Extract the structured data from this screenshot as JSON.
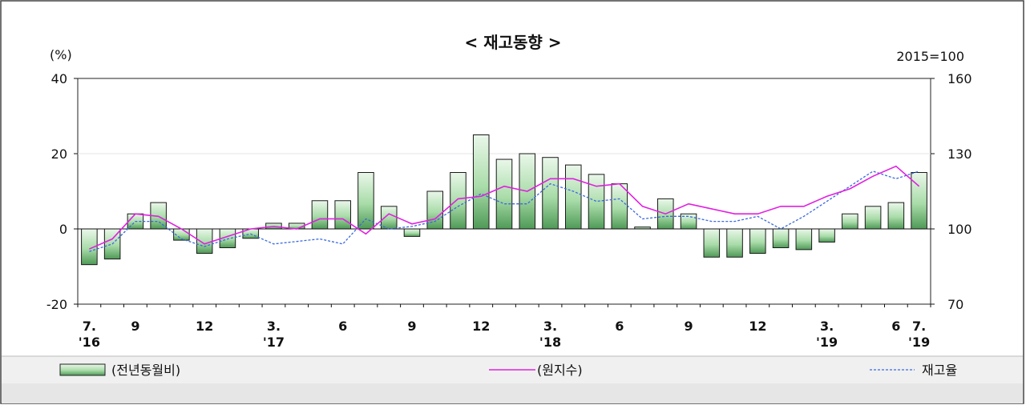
{
  "chart_data": {
    "type": "bar",
    "title": "< 재고동향 >",
    "left_unit": "(%)",
    "right_unit": "2015=100",
    "ylim_left": [
      -20,
      40
    ],
    "ylim_right": [
      70,
      160
    ],
    "left_ticks": [
      "40",
      "20",
      "0",
      "-20"
    ],
    "right_ticks": [
      "160",
      "130",
      "100",
      "70"
    ],
    "months": [
      "2016-07",
      "2016-08",
      "2016-09",
      "2016-10",
      "2016-11",
      "2016-12",
      "2017-01",
      "2017-02",
      "2017-03",
      "2017-04",
      "2017-05",
      "2017-06",
      "2017-07",
      "2017-08",
      "2017-09",
      "2017-10",
      "2017-11",
      "2017-12",
      "2018-01",
      "2018-02",
      "2018-03",
      "2018-04",
      "2018-05",
      "2018-06",
      "2018-07",
      "2018-08",
      "2018-09",
      "2018-10",
      "2018-11",
      "2018-12",
      "2019-01",
      "2019-02",
      "2019-03",
      "2019-04",
      "2019-05",
      "2019-06",
      "2019-07"
    ],
    "x_labels": [
      {
        "index": 0,
        "line1": "7.",
        "line2": "'16"
      },
      {
        "index": 2,
        "line1": "9",
        "line2": ""
      },
      {
        "index": 5,
        "line1": "12",
        "line2": ""
      },
      {
        "index": 8,
        "line1": "3.",
        "line2": "'17"
      },
      {
        "index": 11,
        "line1": "6",
        "line2": ""
      },
      {
        "index": 14,
        "line1": "9",
        "line2": ""
      },
      {
        "index": 17,
        "line1": "12",
        "line2": ""
      },
      {
        "index": 20,
        "line1": "3.",
        "line2": "'18"
      },
      {
        "index": 23,
        "line1": "6",
        "line2": ""
      },
      {
        "index": 26,
        "line1": "9",
        "line2": ""
      },
      {
        "index": 29,
        "line1": "12",
        "line2": ""
      },
      {
        "index": 32,
        "line1": "3.",
        "line2": "'19"
      },
      {
        "index": 35,
        "line1": "6",
        "line2": ""
      },
      {
        "index": 36,
        "line1": "7.",
        "line2": "'19"
      }
    ],
    "series": [
      {
        "name": "(전년동월비)",
        "kind": "bar",
        "axis": "left",
        "color": "#7fbf7f",
        "values": [
          -9.5,
          -8,
          4,
          7,
          -3,
          -6.5,
          -5,
          -2.5,
          1.5,
          1.5,
          7.5,
          7.5,
          15,
          6,
          -2,
          10,
          15,
          25,
          18.5,
          20,
          19,
          17,
          14.5,
          12,
          0.5,
          8,
          4,
          -7.5,
          -7.5,
          -6.5,
          -5,
          -5.5,
          -3.5,
          4,
          6,
          7,
          15
        ]
      },
      {
        "name": "(원지수)",
        "kind": "line",
        "axis": "right",
        "color": "#e020e0",
        "values": [
          92,
          96,
          106,
          105,
          100,
          94,
          97,
          100,
          101,
          100,
          104,
          104,
          98,
          106,
          102,
          104,
          112,
          113,
          117,
          115,
          120,
          120,
          117,
          118,
          109,
          106,
          110,
          108,
          106,
          106,
          109,
          109,
          113,
          116,
          121,
          125,
          117
        ]
      },
      {
        "name": "재고율",
        "kind": "line",
        "axis": "right",
        "color": "#3a6ae0",
        "values": [
          91,
          94,
          103,
          103,
          96,
          93,
          96,
          98,
          94,
          95,
          96,
          94,
          104,
          100,
          101,
          103,
          109,
          114,
          110,
          110,
          118,
          115,
          111,
          112,
          104,
          105,
          105,
          103,
          103,
          105,
          100,
          105,
          111,
          117,
          123,
          120,
          123
        ]
      }
    ]
  }
}
